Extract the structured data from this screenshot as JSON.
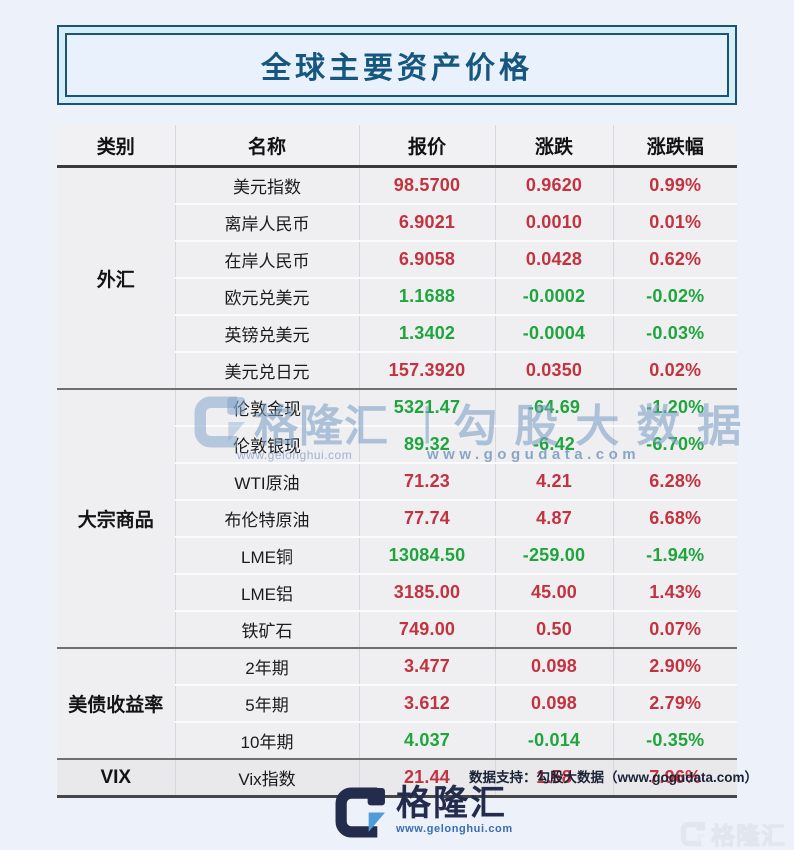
{
  "title": "全球主要资产价格",
  "colors": {
    "up": "#c2333f",
    "down": "#1ea53c",
    "title": "#15577e",
    "title_border": "#1a546f",
    "title_box_outer_bg": "#d5edf4",
    "title_box_inner_bg": "#e9f1fc",
    "page_bg": "#edf1f9",
    "header_bg": "#f1f1f4",
    "row_bg": "#efeff2",
    "vix_row_bg": "#e9e9ec"
  },
  "table": {
    "headers": [
      "类别",
      "名称",
      "报价",
      "涨跌",
      "涨跌幅"
    ],
    "groups": [
      {
        "category": "外汇",
        "rows": [
          {
            "name": "美元指数",
            "price": "98.5700",
            "change": "0.9620",
            "pct": "0.99%",
            "trend": "up"
          },
          {
            "name": "离岸人民币",
            "price": "6.9021",
            "change": "0.0010",
            "pct": "0.01%",
            "trend": "up"
          },
          {
            "name": "在岸人民币",
            "price": "6.9058",
            "change": "0.0428",
            "pct": "0.62%",
            "trend": "up"
          },
          {
            "name": "欧元兑美元",
            "price": "1.1688",
            "change": "-0.0002",
            "pct": "-0.02%",
            "trend": "down"
          },
          {
            "name": "英镑兑美元",
            "price": "1.3402",
            "change": "-0.0004",
            "pct": "-0.03%",
            "trend": "down"
          },
          {
            "name": "美元兑日元",
            "price": "157.3920",
            "change": "0.0350",
            "pct": "0.02%",
            "trend": "up"
          }
        ]
      },
      {
        "category": "大宗商品",
        "rows": [
          {
            "name": "伦敦金现",
            "price": "5321.47",
            "change": "-64.69",
            "pct": "-1.20%",
            "trend": "down"
          },
          {
            "name": "伦敦银现",
            "price": "89.32",
            "change": "-6.42",
            "pct": "-6.70%",
            "trend": "down"
          },
          {
            "name": "WTI原油",
            "price": "71.23",
            "change": "4.21",
            "pct": "6.28%",
            "trend": "up"
          },
          {
            "name": "布伦特原油",
            "price": "77.74",
            "change": "4.87",
            "pct": "6.68%",
            "trend": "up"
          },
          {
            "name": "LME铜",
            "price": "13084.50",
            "change": "-259.00",
            "pct": "-1.94%",
            "trend": "down"
          },
          {
            "name": "LME铝",
            "price": "3185.00",
            "change": "45.00",
            "pct": "1.43%",
            "trend": "up"
          },
          {
            "name": "铁矿石",
            "price": "749.00",
            "change": "0.50",
            "pct": "0.07%",
            "trend": "up"
          }
        ]
      },
      {
        "category": "美债收益率",
        "rows": [
          {
            "name": "2年期",
            "price": "3.477",
            "change": "0.098",
            "pct": "2.90%",
            "trend": "up"
          },
          {
            "name": "5年期",
            "price": "3.612",
            "change": "0.098",
            "pct": "2.79%",
            "trend": "up"
          },
          {
            "name": "10年期",
            "price": "4.037",
            "change": "-0.014",
            "pct": "-0.35%",
            "trend": "down"
          }
        ]
      },
      {
        "category": "VIX",
        "rows": [
          {
            "name": "Vix指数",
            "price": "21.44",
            "change": "1.58",
            "pct": "7.96%",
            "trend": "up"
          }
        ]
      }
    ]
  },
  "watermark_center": {
    "brand": "格隆汇",
    "divider": "|",
    "brand2": "勾股大数据",
    "url1": "www.gelonghui.com",
    "url2": "www.gogudata.com"
  },
  "footer": {
    "support_text": "数据支持：勾股大数据（www.gogudata.com）",
    "logo_text": "格隆汇",
    "logo_url": "www.gelonghui.com",
    "corner_watermark": "格隆汇"
  },
  "chart_data": {
    "type": "table",
    "title": "全球主要资产价格",
    "columns": [
      "类别",
      "名称",
      "报价",
      "涨跌",
      "涨跌幅(%)"
    ],
    "rows": [
      [
        "外汇",
        "美元指数",
        98.57,
        0.962,
        0.99
      ],
      [
        "外汇",
        "离岸人民币",
        6.9021,
        0.001,
        0.01
      ],
      [
        "外汇",
        "在岸人民币",
        6.9058,
        0.0428,
        0.62
      ],
      [
        "外汇",
        "欧元兑美元",
        1.1688,
        -0.0002,
        -0.02
      ],
      [
        "外汇",
        "英镑兑美元",
        1.3402,
        -0.0004,
        -0.03
      ],
      [
        "外汇",
        "美元兑日元",
        157.392,
        0.035,
        0.02
      ],
      [
        "大宗商品",
        "伦敦金现",
        5321.47,
        -64.69,
        -1.2
      ],
      [
        "大宗商品",
        "伦敦银现",
        89.32,
        -6.42,
        -6.7
      ],
      [
        "大宗商品",
        "WTI原油",
        71.23,
        4.21,
        6.28
      ],
      [
        "大宗商品",
        "布伦特原油",
        77.74,
        4.87,
        6.68
      ],
      [
        "大宗商品",
        "LME铜",
        13084.5,
        -259.0,
        -1.94
      ],
      [
        "大宗商品",
        "LME铝",
        3185.0,
        45.0,
        1.43
      ],
      [
        "大宗商品",
        "铁矿石",
        749.0,
        0.5,
        0.07
      ],
      [
        "美债收益率",
        "2年期",
        3.477,
        0.098,
        2.9
      ],
      [
        "美债收益率",
        "5年期",
        3.612,
        0.098,
        2.79
      ],
      [
        "美债收益率",
        "10年期",
        4.037,
        -0.014,
        -0.35
      ],
      [
        "VIX",
        "Vix指数",
        21.44,
        1.58,
        7.96
      ]
    ]
  }
}
